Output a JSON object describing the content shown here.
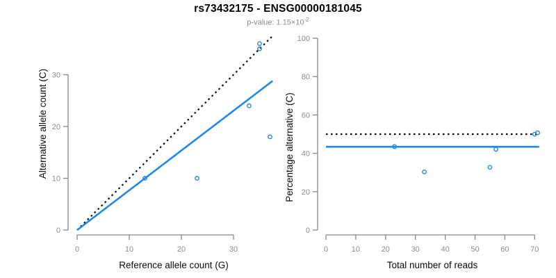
{
  "header": {
    "title": "rs73432175 - ENSG00000181045",
    "subtitle_text": "p-value: 1.15×10",
    "subtitle_exponent": "-2"
  },
  "colors": {
    "fit_blue": "#1F87E8",
    "point_blue": "#2B85D8",
    "dotted_black": "#000000",
    "axis_gray": "#878787",
    "tick_label_gray": "#8c8c8c",
    "axis_title_black": "#0a0a0a",
    "background": "#ffffff"
  },
  "chart_data": [
    {
      "type": "scatter",
      "title": "rs73432175 - ENSG00000181045",
      "subtitle": "p-value: 1.15×10^-2",
      "xlabel": "Reference allele count (G)",
      "ylabel": "Alternative allele count (C)",
      "xticks": [
        0,
        10,
        20,
        30
      ],
      "yticks": [
        0,
        10,
        20,
        30
      ],
      "xlim": [
        0,
        37.5
      ],
      "ylim": [
        0,
        38
      ],
      "grid": false,
      "points": [
        [
          13,
          10
        ],
        [
          23,
          10
        ],
        [
          33,
          24
        ],
        [
          37,
          18
        ],
        [
          35,
          35
        ],
        [
          35,
          36
        ]
      ],
      "lines": [
        {
          "name": "identity-line",
          "style": "dotted",
          "color": "black",
          "x1": 0,
          "y1": 0,
          "x2": 37.5,
          "y2": 37.5
        },
        {
          "name": "fit-line",
          "style": "solid",
          "color": "blue",
          "x1": 0,
          "y1": 0,
          "x2": 37.5,
          "y2": 28.8
        }
      ]
    },
    {
      "type": "scatter",
      "xlabel": "Total number of reads",
      "ylabel": "Percentage alternative (C)",
      "xticks": [
        0,
        10,
        20,
        30,
        40,
        50,
        60,
        70
      ],
      "yticks": [
        0,
        20,
        40,
        60,
        80,
        100
      ],
      "xlim": [
        0,
        71.5
      ],
      "ylim": [
        0,
        100
      ],
      "grid": false,
      "points": [
        [
          23,
          43.5
        ],
        [
          33,
          30.3
        ],
        [
          55,
          32.7
        ],
        [
          57,
          42.1
        ],
        [
          70,
          50.0
        ],
        [
          71,
          50.7
        ]
      ],
      "lines": [
        {
          "name": "fifty-percent-line",
          "style": "dotted",
          "color": "black",
          "x1": 0,
          "y1": 50,
          "x2": 71.5,
          "y2": 50
        },
        {
          "name": "fit-line",
          "style": "solid",
          "color": "blue",
          "x1": 0,
          "y1": 43.4,
          "x2": 71.5,
          "y2": 43.4
        }
      ]
    }
  ]
}
